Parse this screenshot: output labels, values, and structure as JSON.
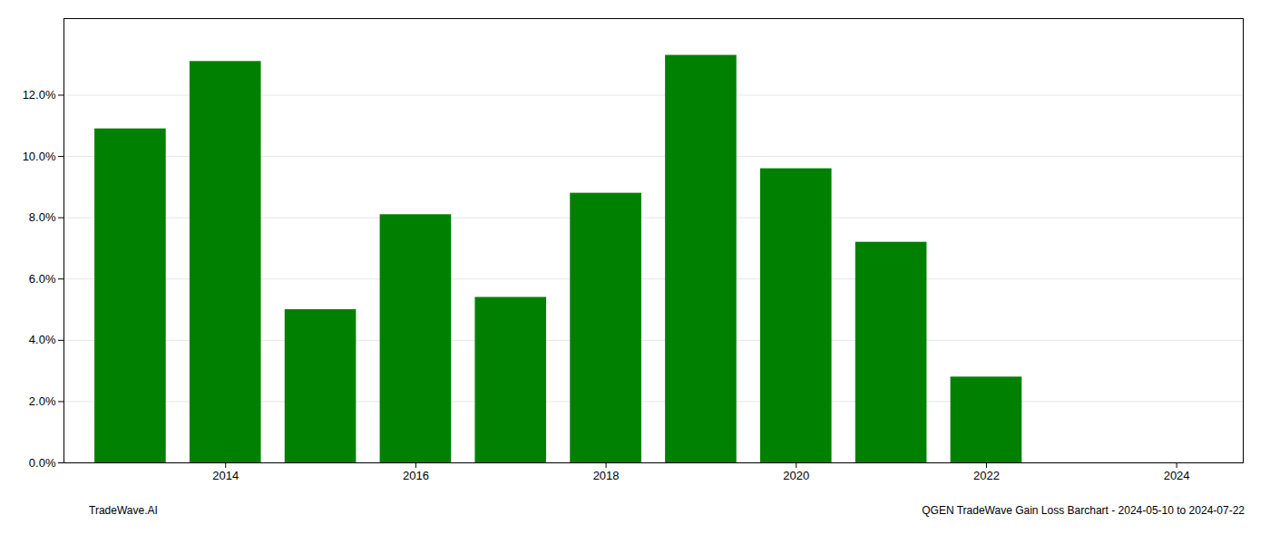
{
  "chart_data": {
    "type": "bar",
    "x": [
      2013,
      2014,
      2015,
      2016,
      2017,
      2018,
      2019,
      2020,
      2021,
      2022,
      2023
    ],
    "values": [
      0.109,
      0.131,
      0.05,
      0.081,
      0.054,
      0.088,
      0.133,
      0.096,
      0.072,
      0.028,
      0.0
    ],
    "color": "#008000",
    "xlim": [
      2012.3,
      2024.7
    ],
    "xticks": [
      2014,
      2016,
      2018,
      2020,
      2022,
      2024
    ],
    "ylim": [
      0,
      0.145
    ],
    "yticks": [
      {
        "value": 0.0,
        "label": "0.0%"
      },
      {
        "value": 0.02,
        "label": "2.0%"
      },
      {
        "value": 0.04,
        "label": "4.0%"
      },
      {
        "value": 0.06,
        "label": "6.0%"
      },
      {
        "value": 0.08,
        "label": "8.0%"
      },
      {
        "value": 0.1,
        "label": "10.0%"
      },
      {
        "value": 0.12,
        "label": "12.0%"
      }
    ],
    "grid": true,
    "annotations": [
      "TradeWave.AI",
      "QGEN TradeWave Gain Loss Barchart - 2024-05-10 to 2024-07-22"
    ]
  }
}
